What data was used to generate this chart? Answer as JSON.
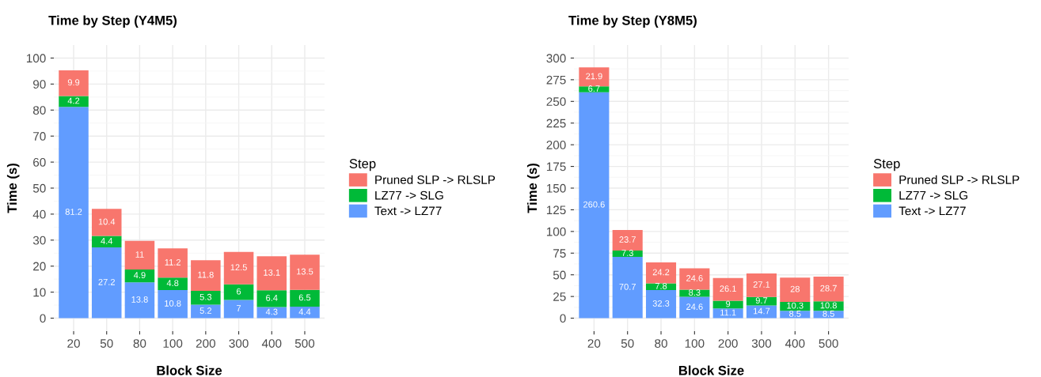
{
  "chart_data": [
    {
      "type": "bar",
      "title": "Time by Step (Y4M5)",
      "xlabel": "Block Size",
      "ylabel": "Time (s)",
      "legend_title": "Step",
      "stacked": true,
      "data_labels": true,
      "grid": true,
      "legend": "right",
      "categories": [
        "20",
        "50",
        "80",
        "100",
        "200",
        "300",
        "400",
        "500"
      ],
      "ylim": [
        -5,
        105
      ],
      "yticks": [
        0,
        10,
        20,
        30,
        40,
        50,
        60,
        70,
        80,
        90,
        100
      ],
      "series": [
        {
          "name": "Text -> LZ77",
          "color": "#619cff",
          "values": [
            81.2,
            27.2,
            13.8,
            10.8,
            5.2,
            7,
            4.3,
            4.4
          ]
        },
        {
          "name": "LZ77 -> SLG",
          "color": "#00ba38",
          "values": [
            4.2,
            4.4,
            4.9,
            4.8,
            5.3,
            6,
            6.4,
            6.5
          ]
        },
        {
          "name": "Pruned SLP -> RLSLP",
          "color": "#f8766d",
          "values": [
            9.9,
            10.4,
            11,
            11.2,
            11.8,
            12.5,
            13.1,
            13.5
          ]
        }
      ]
    },
    {
      "type": "bar",
      "title": "Time by Step (Y8M5)",
      "xlabel": "Block Size",
      "ylabel": "Time (s)",
      "legend_title": "Step",
      "stacked": true,
      "data_labels": true,
      "grid": true,
      "legend": "right",
      "categories": [
        "20",
        "50",
        "80",
        "100",
        "200",
        "300",
        "400",
        "500"
      ],
      "ylim": [
        -15,
        315
      ],
      "yticks": [
        0,
        25,
        50,
        75,
        100,
        125,
        150,
        175,
        200,
        225,
        250,
        275,
        300
      ],
      "series": [
        {
          "name": "Text -> LZ77",
          "color": "#619cff",
          "values": [
            260.6,
            70.7,
            32.3,
            24.6,
            11.1,
            14.7,
            8.5,
            8.5
          ]
        },
        {
          "name": "LZ77 -> SLG",
          "color": "#00ba38",
          "values": [
            6.7,
            7.3,
            7.8,
            8.3,
            9,
            9.7,
            10.3,
            10.8
          ]
        },
        {
          "name": "Pruned SLP -> RLSLP",
          "color": "#f8766d",
          "values": [
            21.9,
            23.7,
            24.2,
            24.6,
            26.1,
            27.1,
            28,
            28.7
          ]
        }
      ]
    }
  ]
}
